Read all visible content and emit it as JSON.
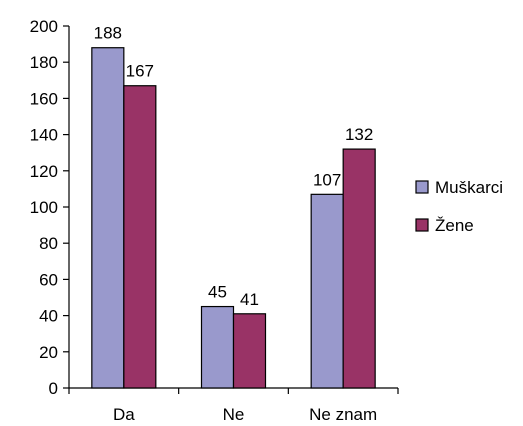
{
  "chart_data": {
    "type": "bar",
    "title": "",
    "xlabel": "",
    "ylabel": "",
    "ylim": [
      0,
      200
    ],
    "yticks": [
      0,
      20,
      40,
      60,
      80,
      100,
      120,
      140,
      160,
      180,
      200
    ],
    "grid": false,
    "legend_position": "right",
    "categories": [
      "Da",
      "Ne",
      "Ne znam"
    ],
    "series": [
      {
        "name": "Muškarci",
        "values": [
          188,
          45,
          107
        ],
        "color": "#9999CC"
      },
      {
        "name": "Žene",
        "values": [
          167,
          41,
          132
        ],
        "color": "#993366"
      }
    ]
  }
}
